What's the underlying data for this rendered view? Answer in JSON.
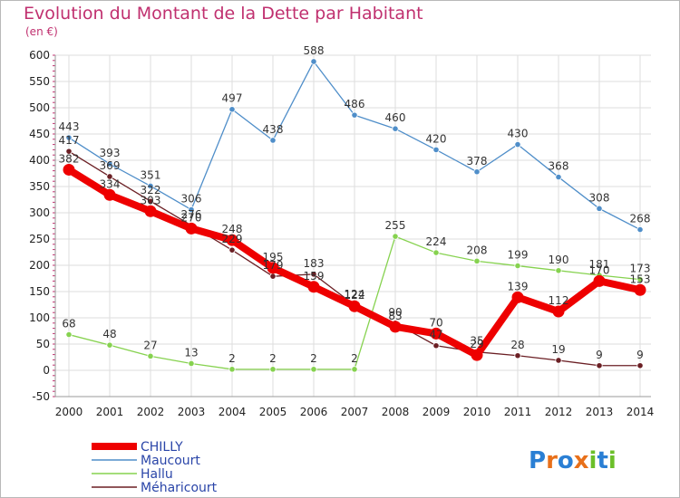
{
  "title": "Evolution du Montant de la Dette par Habitant",
  "unit": "(en €)",
  "logo": {
    "text": "Proxiti",
    "letters": [
      "P",
      "r",
      "o",
      "x",
      "i",
      "t",
      "i"
    ],
    "colors": [
      "#2a7fd4",
      "#e8701a",
      "#2a7fd4",
      "#e8701a",
      "#6bbf2a",
      "#2a7fd4",
      "#6bbf2a"
    ]
  },
  "chart_data": {
    "type": "line",
    "title": "Evolution du Montant de la Dette par Habitant",
    "ylabel": "(en €)",
    "xlabel": "",
    "ylim": [
      -50,
      600
    ],
    "yticks": [
      -50,
      0,
      50,
      100,
      150,
      200,
      250,
      300,
      350,
      400,
      450,
      500,
      550,
      600
    ],
    "grid": true,
    "legend_position": "bottom-left",
    "categories": [
      "2000",
      "2001",
      "2002",
      "2003",
      "2004",
      "2005",
      "2006",
      "2007",
      "2008",
      "2009",
      "2010",
      "2011",
      "2012",
      "2013",
      "2014"
    ],
    "series": [
      {
        "name": "CHILLY",
        "color": "#ee0000",
        "values": [
          382,
          334,
          303,
          270,
          248,
          195,
          159,
          122,
          83,
          70,
          29,
          139,
          112,
          170,
          153
        ]
      },
      {
        "name": "Maucourt",
        "color": "#4f8ec9",
        "values": [
          443,
          393,
          351,
          306,
          497,
          438,
          588,
          486,
          460,
          420,
          378,
          430,
          368,
          308,
          268
        ]
      },
      {
        "name": "Hallu",
        "color": "#86d24f",
        "values": [
          68,
          48,
          27,
          13,
          2,
          2,
          2,
          2,
          255,
          224,
          208,
          199,
          190,
          181,
          173
        ]
      },
      {
        "name": "Méharicourt",
        "color": "#6b1f24",
        "values": [
          417,
          369,
          322,
          276,
          229,
          179,
          183,
          124,
          90,
          47,
          35,
          28,
          19,
          9,
          9
        ]
      }
    ]
  }
}
